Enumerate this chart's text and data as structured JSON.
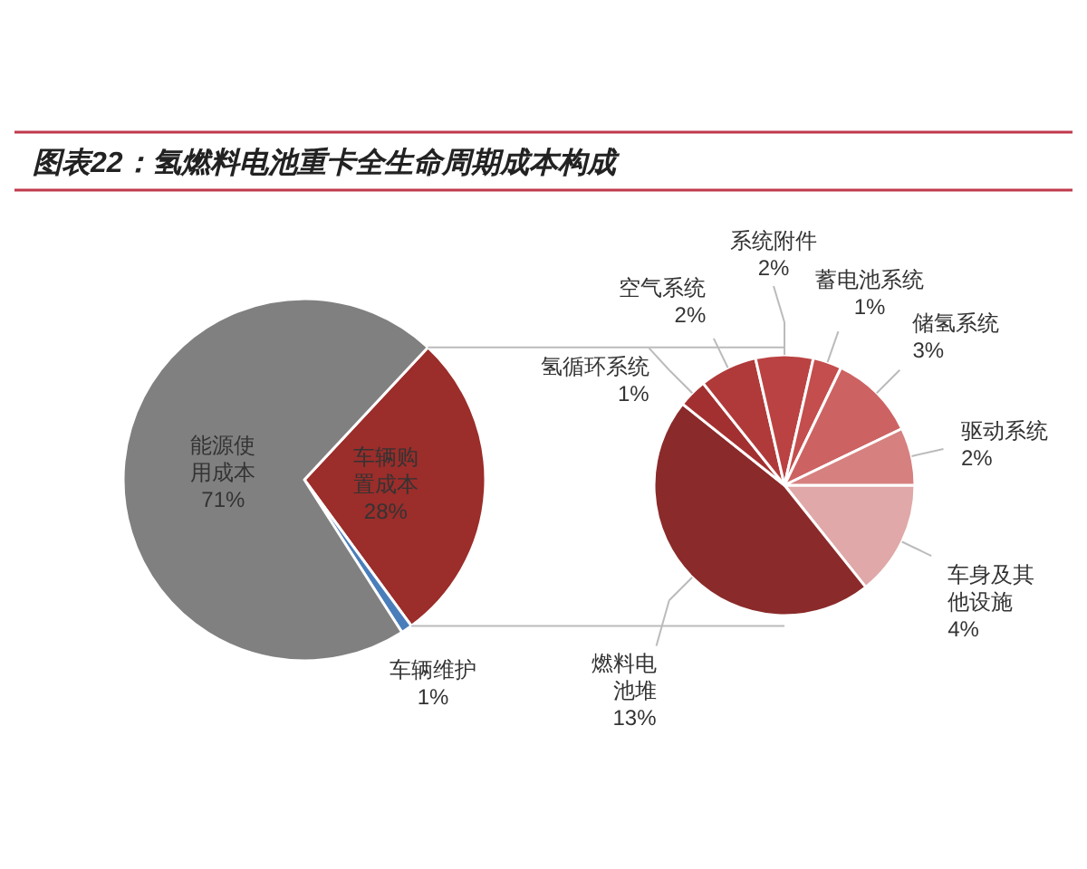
{
  "chart_data": [
    {
      "type": "pie",
      "title": "图表22：氢燃料电池重卡全生命周期成本构成",
      "categories": [
        "车辆购置成本",
        "车辆维护",
        "能源使用成本"
      ],
      "values": [
        28,
        1,
        71
      ],
      "colors": [
        "#9b2d2a",
        "#4a7ebb",
        "#808080"
      ],
      "value_labels": [
        "28%",
        "1%",
        "71%"
      ]
    },
    {
      "type": "pie",
      "categories": [
        "车身及其他设施",
        "燃料电池堆",
        "氢循环系统",
        "空气系统",
        "系统附件",
        "蓄电池系统",
        "储氢系统",
        "驱动系统"
      ],
      "values": [
        4,
        13,
        1,
        2,
        2,
        1,
        3,
        2
      ],
      "colors": [
        "#e0a8a8",
        "#8b2a2a",
        "#a33030",
        "#b03a3a",
        "#bb4242",
        "#c44d4d",
        "#cd6262",
        "#d68080"
      ],
      "value_labels": [
        "4%",
        "13%",
        "1%",
        "2%",
        "2%",
        "1%",
        "3%",
        "2%"
      ]
    }
  ]
}
